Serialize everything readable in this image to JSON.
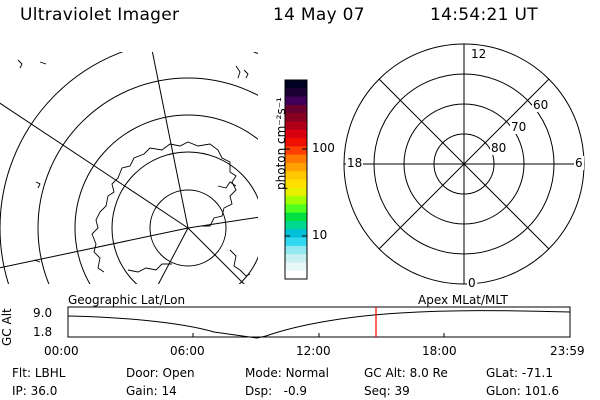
{
  "header": {
    "title": "Ultraviolet Imager",
    "date": "14 May 07",
    "time": "14:54:21 UT"
  },
  "colorbar": {
    "label": "photon cm⁻²s⁻¹",
    "ticks": [
      "100",
      "10"
    ],
    "colors": [
      "#000022",
      "#1a0033",
      "#40005a",
      "#6a0030",
      "#8a0020",
      "#b00018",
      "#d80010",
      "#f01000",
      "#ff4000",
      "#ff7800",
      "#ffa000",
      "#ffc800",
      "#ffe000",
      "#e8f000",
      "#a0ff00",
      "#50ff20",
      "#00e040",
      "#00d890",
      "#00c0d8",
      "#30d8f0",
      "#90e8f0",
      "#c8f0f0",
      "#e8f8f8",
      "#ffffff"
    ]
  },
  "polar_plot": {
    "latitude_labels": [
      "60",
      "70",
      "80"
    ],
    "mlt_labels": {
      "top": "12",
      "left": "18",
      "right": "6",
      "bottom": "0"
    }
  },
  "timeline": {
    "left_label": "Geographic Lat/Lon",
    "right_label": "Apex MLat/MLT",
    "y_axis_label": "GC Alt",
    "y_ticks": [
      "9.0",
      "1.8"
    ],
    "x_ticks": [
      "00:00",
      "06:00",
      "12:00",
      "18:00",
      "23:59"
    ],
    "marker_color": "#ff0000"
  },
  "footer": {
    "row1": [
      {
        "k": "Flt:",
        "v": "LBHL"
      },
      {
        "k": "Door:",
        "v": "Open"
      },
      {
        "k": "Mode:",
        "v": "Normal"
      },
      {
        "k": "GC Alt:",
        "v": "8.0 Re"
      },
      {
        "k": "GLat:",
        "v": "-71.1"
      }
    ],
    "row2": [
      {
        "k": "IP:",
        "v": "36.0"
      },
      {
        "k": "Gain:",
        "v": "14"
      },
      {
        "k": "Dsp:",
        "v": "-0.9"
      },
      {
        "k": "Seq:",
        "v": "39"
      },
      {
        "k": "GLon:",
        "v": "101.6"
      }
    ]
  }
}
